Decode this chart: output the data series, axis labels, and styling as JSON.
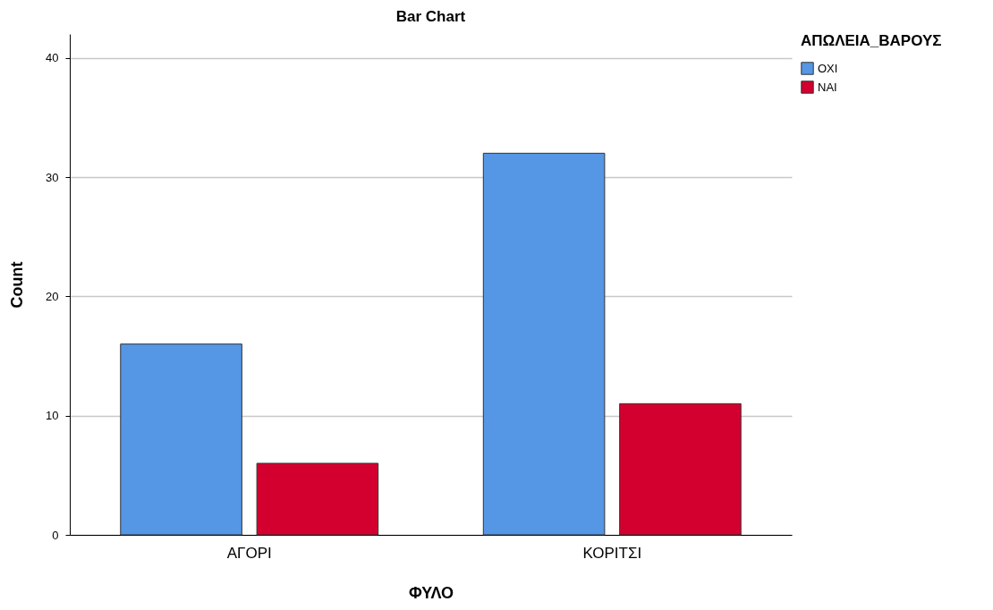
{
  "chart_data": {
    "type": "bar",
    "title": "Bar Chart",
    "xlabel": "ΦΥΛΟ",
    "ylabel": "Count",
    "legend_title": "ΑΠΩΛΕΙΑ_ΒΑΡΟΥΣ",
    "categories": [
      "ΑΓΟΡΙ",
      "ΚΟΡΙΤΣΙ"
    ],
    "series": [
      {
        "name": "ΟΧΙ",
        "color": "#5596e5",
        "values": [
          16,
          32
        ]
      },
      {
        "name": "ΝΑΙ",
        "color": "#d3002f",
        "values": [
          6,
          11
        ]
      }
    ],
    "ylim": [
      0,
      42
    ],
    "yticks": [
      0,
      10,
      20,
      30,
      40
    ],
    "grid": "y",
    "legend": "top right"
  }
}
